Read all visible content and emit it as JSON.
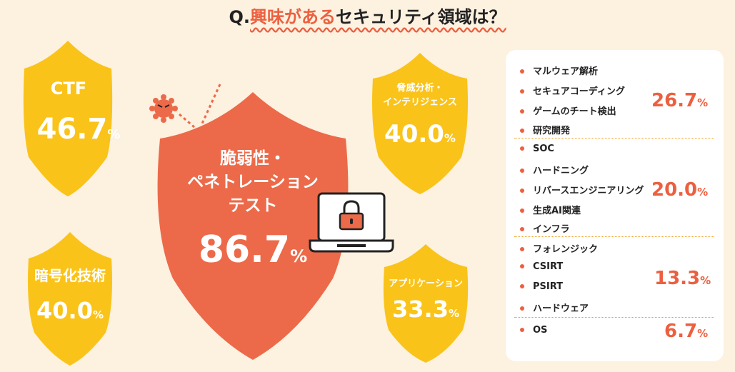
{
  "title": {
    "prefix": "Q.",
    "highlight": "興味がある",
    "suffix": "セキュリティ領域は？"
  },
  "colors": {
    "background": "#fdf1e0",
    "yellow_shield": "#fac319",
    "orange_shield": "#ec6a49",
    "accent": "#ec6040",
    "separator": "#f0a020"
  },
  "shields": [
    {
      "label": "CTF",
      "value": "46.7",
      "unit": "%"
    },
    {
      "label": "脆弱性・\nペネトレーション\nテスト",
      "value": "86.7",
      "unit": "%"
    },
    {
      "label": "脅威分析・\nインテリジェンス",
      "value": "40.0",
      "unit": "%"
    },
    {
      "label": "暗号化技術",
      "value": "40.0",
      "unit": "%"
    },
    {
      "label": "アプリケーション",
      "value": "33.3",
      "unit": "%"
    }
  ],
  "groups": [
    {
      "items": [
        "マルウェア解析",
        "セキュアコーディング",
        "ゲームのチート検出",
        "研究開発"
      ],
      "value": "26.7",
      "unit": "%"
    },
    {
      "items": [
        "SOC",
        "ハードニング",
        "リバースエンジニアリング",
        "生成AI関連",
        "インフラ"
      ],
      "value": "20.0",
      "unit": "%"
    },
    {
      "items": [
        "フォレンジック",
        "CSIRT",
        "PSIRT",
        "ハードウェア"
      ],
      "value": "13.3",
      "unit": "%"
    },
    {
      "items": [
        "OS"
      ],
      "value": "6.7",
      "unit": "%"
    }
  ],
  "chart_data": {
    "type": "bar",
    "title": "Q.興味があるセキュリティ領域は？",
    "categories": [
      "脆弱性・ペネトレーションテスト",
      "CTF",
      "脅威分析・インテリジェンス",
      "暗号化技術",
      "アプリケーション",
      "マルウェア解析",
      "セキュアコーディング",
      "ゲームのチート検出",
      "研究開発",
      "SOC",
      "ハードニング",
      "リバースエンジニアリング",
      "生成AI関連",
      "インフラ",
      "フォレンジック",
      "CSIRT",
      "PSIRT",
      "ハードウェア",
      "OS"
    ],
    "values": [
      86.7,
      46.7,
      40.0,
      40.0,
      33.3,
      26.7,
      26.7,
      26.7,
      26.7,
      20.0,
      20.0,
      20.0,
      20.0,
      20.0,
      13.3,
      13.3,
      13.3,
      13.3,
      6.7
    ]
  }
}
